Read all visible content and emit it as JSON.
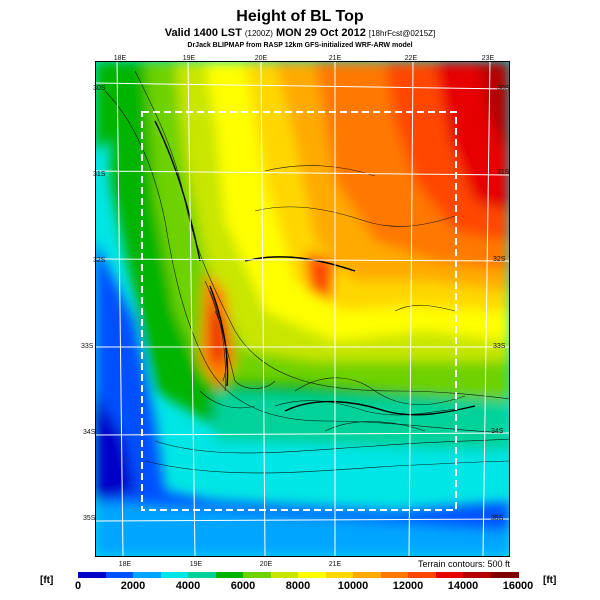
{
  "header": {
    "title": "Height of BL Top",
    "subtitle_main": "Valid 1400 LST",
    "subtitle_zone": "(1200Z)",
    "subtitle_date": "MON 29 Oct 2012",
    "subtitle_fcst": "[18hrFcst@0215Z]",
    "credit": "DrJack BLIPMAP from RASP 12km GFS-initialized WRF-ARW model"
  },
  "map": {
    "top_ticks": [
      "18E",
      "19E",
      "20E",
      "21E",
      "22E",
      "23E"
    ],
    "bottom_ticks": [
      "18E",
      "19E",
      "20E",
      "21E"
    ],
    "left_ticks": [
      "30S",
      "31S",
      "32S",
      "33S",
      "34S",
      "35S"
    ],
    "right_ticks": [
      "30S",
      "31S",
      "32S",
      "33S",
      "34S",
      "35S"
    ],
    "terrain_note": "Terrain contours: 500 ft"
  },
  "legend": {
    "unit_left": "[ft]",
    "unit_right": "[ft]",
    "labels": [
      "0",
      "2000",
      "4000",
      "6000",
      "8000",
      "10000",
      "12000",
      "14000",
      "16000"
    ],
    "colors": [
      "#0000c8",
      "#0050ff",
      "#00a5ff",
      "#00e5e5",
      "#00d29a",
      "#00b400",
      "#6ed200",
      "#c8e600",
      "#ffff00",
      "#ffd700",
      "#ffaa00",
      "#ff7800",
      "#ff4600",
      "#e60000",
      "#b40000",
      "#800000"
    ]
  }
}
